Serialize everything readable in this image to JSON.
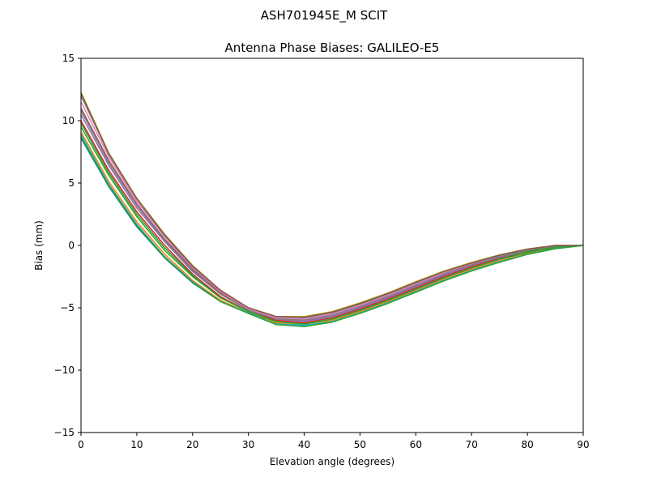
{
  "chart_data": {
    "type": "line",
    "suptitle": "ASH701945E_M    SCIT",
    "title": "Antenna Phase Biases: GALILEO-E5",
    "xlabel": "Elevation angle (degrees)",
    "ylabel": "Bias (mm)",
    "xlim": [
      0,
      90
    ],
    "ylim": [
      -15,
      15
    ],
    "xticks": [
      0,
      10,
      20,
      30,
      40,
      50,
      60,
      70,
      80,
      90
    ],
    "yticks": [
      -15,
      -10,
      -5,
      0,
      5,
      10,
      15
    ],
    "xtick_labels": [
      "0",
      "10",
      "20",
      "30",
      "40",
      "50",
      "60",
      "70",
      "80",
      "90"
    ],
    "ytick_labels": [
      "−15",
      "−10",
      "−5",
      "0",
      "5",
      "10",
      "15"
    ],
    "grid": false,
    "legend": "none",
    "x": [
      0,
      5,
      10,
      15,
      20,
      25,
      30,
      35,
      40,
      45,
      50,
      55,
      60,
      65,
      70,
      75,
      80,
      85,
      90
    ],
    "series": [
      {
        "color": "#1f77b4",
        "values": [
          8.6,
          4.7,
          1.5,
          -1.0,
          -3.0,
          -4.5,
          -5.4,
          -6.3,
          -6.5,
          -6.1,
          -5.4,
          -4.6,
          -3.7,
          -2.8,
          -2.0,
          -1.3,
          -0.7,
          -0.25,
          0.0
        ]
      },
      {
        "color": "#ff7f0e",
        "values": [
          9.1,
          5.1,
          1.9,
          -0.7,
          -2.8,
          -4.4,
          -5.4,
          -6.2,
          -6.4,
          -6.0,
          -5.3,
          -4.5,
          -3.6,
          -2.7,
          -1.9,
          -1.2,
          -0.6,
          -0.2,
          0.0
        ]
      },
      {
        "color": "#2ca02c",
        "values": [
          9.5,
          5.6,
          2.3,
          -0.4,
          -2.5,
          -4.2,
          -5.3,
          -6.1,
          -6.3,
          -5.9,
          -5.2,
          -4.4,
          -3.5,
          -2.6,
          -1.8,
          -1.1,
          -0.55,
          -0.15,
          0.0
        ]
      },
      {
        "color": "#d62728",
        "values": [
          10.0,
          6.0,
          2.7,
          0.0,
          -2.3,
          -4.1,
          -5.3,
          -6.0,
          -6.2,
          -5.8,
          -5.1,
          -4.3,
          -3.4,
          -2.5,
          -1.7,
          -1.0,
          -0.5,
          -0.1,
          0.0
        ]
      },
      {
        "color": "#9467bd",
        "values": [
          10.5,
          6.4,
          3.0,
          0.3,
          -2.1,
          -3.9,
          -5.2,
          -5.9,
          -6.1,
          -5.7,
          -5.0,
          -4.2,
          -3.3,
          -2.4,
          -1.6,
          -0.95,
          -0.45,
          -0.08,
          0.0
        ]
      },
      {
        "color": "#8c564b",
        "values": [
          11.0,
          6.8,
          3.3,
          0.5,
          -1.9,
          -3.8,
          -5.1,
          -5.8,
          -6.0,
          -5.6,
          -4.9,
          -4.1,
          -3.2,
          -2.3,
          -1.5,
          -0.9,
          -0.4,
          -0.05,
          0.0
        ]
      },
      {
        "color": "#e377c2",
        "values": [
          11.5,
          7.1,
          3.5,
          0.7,
          -1.8,
          -3.7,
          -5.1,
          -5.8,
          -5.9,
          -5.5,
          -4.8,
          -4.0,
          -3.1,
          -2.2,
          -1.45,
          -0.85,
          -0.35,
          -0.03,
          0.0
        ]
      },
      {
        "color": "#7f7f7f",
        "values": [
          12.0,
          7.3,
          3.7,
          0.8,
          -1.7,
          -3.6,
          -5.0,
          -5.7,
          -5.8,
          -5.4,
          -4.7,
          -3.9,
          -3.0,
          -2.1,
          -1.4,
          -0.8,
          -0.3,
          0.0,
          0.0
        ]
      },
      {
        "color": "#bcbd22",
        "values": [
          12.3,
          7.4,
          3.8,
          0.9,
          -1.6,
          -3.6,
          -5.0,
          -5.7,
          -5.7,
          -5.3,
          -4.6,
          -3.8,
          -2.9,
          -2.05,
          -1.35,
          -0.75,
          -0.28,
          0.0,
          0.0
        ]
      },
      {
        "color": "#17becf",
        "values": [
          8.9,
          4.9,
          1.7,
          -0.9,
          -2.9,
          -4.5,
          -5.4,
          -6.3,
          -6.4,
          -6.1,
          -5.4,
          -4.6,
          -3.7,
          -2.8,
          -2.0,
          -1.3,
          -0.7,
          -0.25,
          0.0
        ]
      },
      {
        "color": "#2ca02c",
        "values": [
          9.8,
          5.8,
          2.5,
          -0.2,
          -2.4,
          -4.2,
          -5.3,
          -6.1,
          -6.3,
          -5.9,
          -5.2,
          -4.4,
          -3.5,
          -2.6,
          -1.8,
          -1.1,
          -0.5,
          -0.12,
          0.0
        ]
      },
      {
        "color": "#7f7f7f",
        "values": [
          10.8,
          6.6,
          3.2,
          0.4,
          -2.0,
          -3.9,
          -5.2,
          -5.9,
          -6.0,
          -5.6,
          -4.9,
          -4.1,
          -3.2,
          -2.3,
          -1.55,
          -0.9,
          -0.4,
          -0.05,
          0.0
        ]
      },
      {
        "color": "#8c564b",
        "values": [
          12.2,
          7.35,
          3.75,
          0.85,
          -1.65,
          -3.6,
          -5.0,
          -5.7,
          -5.75,
          -5.35,
          -4.65,
          -3.85,
          -2.95,
          -2.1,
          -1.4,
          -0.78,
          -0.3,
          0.0,
          0.0
        ]
      },
      {
        "color": "#2ca02c",
        "values": [
          8.7,
          4.8,
          1.6,
          -0.95,
          -2.95,
          -4.5,
          -5.45,
          -6.35,
          -6.5,
          -6.15,
          -5.45,
          -4.65,
          -3.75,
          -2.85,
          -2.05,
          -1.35,
          -0.72,
          -0.27,
          0.0
        ]
      }
    ]
  }
}
